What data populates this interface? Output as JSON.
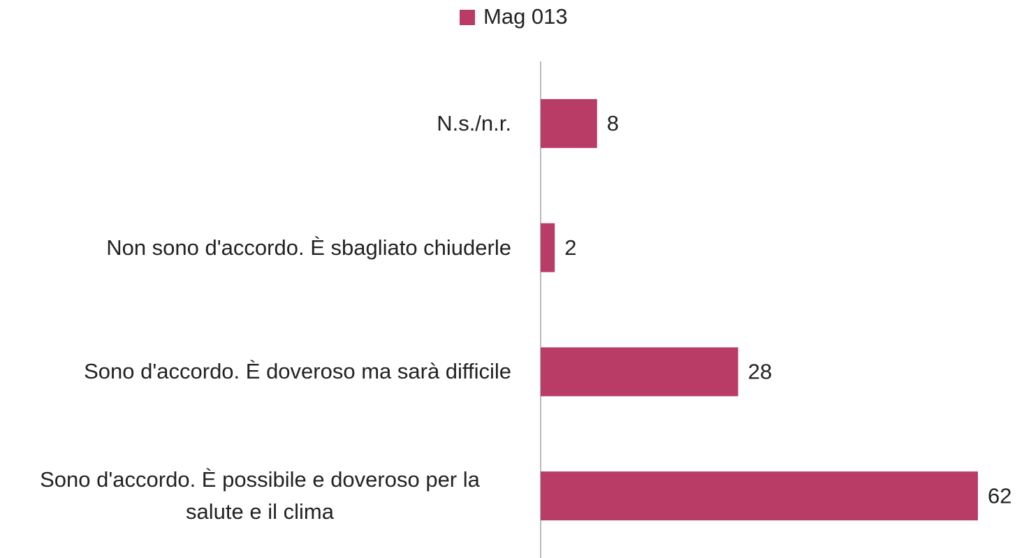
{
  "chart_data": {
    "type": "bar",
    "orientation": "horizontal",
    "categories": [
      "N.s./n.r.",
      "Non sono d'accordo. È sbagliato chiuderle",
      "Sono d'accordo. È doveroso ma sarà difficile",
      "Sono d'accordo. È possibile e doveroso per la salute e il clima"
    ],
    "series": [
      {
        "name": "Mag 013",
        "color": "#b83c66",
        "values": [
          8,
          2,
          28,
          62
        ]
      }
    ],
    "legend": "top"
  }
}
